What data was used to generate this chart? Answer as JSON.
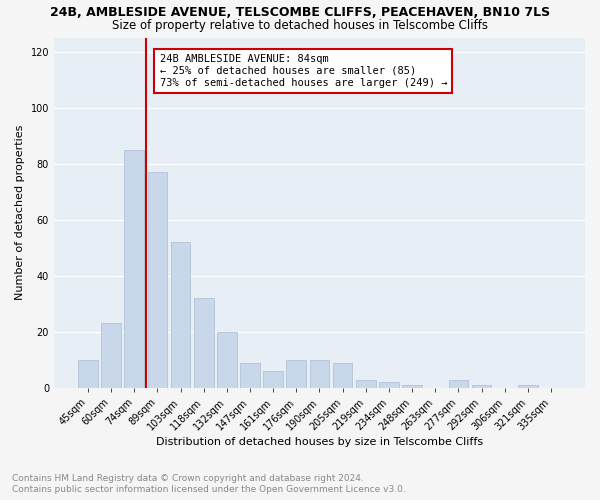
{
  "title": "24B, AMBLESIDE AVENUE, TELSCOMBE CLIFFS, PEACEHAVEN, BN10 7LS",
  "subtitle": "Size of property relative to detached houses in Telscombe Cliffs",
  "xlabel": "Distribution of detached houses by size in Telscombe Cliffs",
  "ylabel": "Number of detached properties",
  "categories": [
    "45sqm",
    "60sqm",
    "74sqm",
    "89sqm",
    "103sqm",
    "118sqm",
    "132sqm",
    "147sqm",
    "161sqm",
    "176sqm",
    "190sqm",
    "205sqm",
    "219sqm",
    "234sqm",
    "248sqm",
    "263sqm",
    "277sqm",
    "292sqm",
    "306sqm",
    "321sqm",
    "335sqm"
  ],
  "values": [
    10,
    23,
    85,
    77,
    52,
    32,
    20,
    9,
    6,
    10,
    10,
    9,
    3,
    2,
    1,
    0,
    3,
    1,
    0,
    1,
    0
  ],
  "bar_color": "#c8d8ea",
  "bar_edge_color": "#a8bdd0",
  "vline_color": "#cc0000",
  "vline_x": 2.5,
  "annotation_line1": "24B AMBLESIDE AVENUE: 84sqm",
  "annotation_line2": "← 25% of detached houses are smaller (85)",
  "annotation_line3": "73% of semi-detached houses are larger (249) →",
  "annotation_box_facecolor": "#ffffff",
  "annotation_box_edgecolor": "#cc0000",
  "ylim": [
    0,
    125
  ],
  "yticks": [
    0,
    20,
    40,
    60,
    80,
    100,
    120
  ],
  "footer_line1": "Contains HM Land Registry data © Crown copyright and database right 2024.",
  "footer_line2": "Contains public sector information licensed under the Open Government Licence v3.0.",
  "plot_bg_color": "#e8eef5",
  "fig_bg_color": "#f5f5f5",
  "grid_color": "#ffffff",
  "title_fontsize": 9,
  "subtitle_fontsize": 8.5,
  "ylabel_fontsize": 8,
  "xlabel_fontsize": 8,
  "tick_fontsize": 7,
  "annotation_fontsize": 7.5,
  "footer_fontsize": 6.5
}
